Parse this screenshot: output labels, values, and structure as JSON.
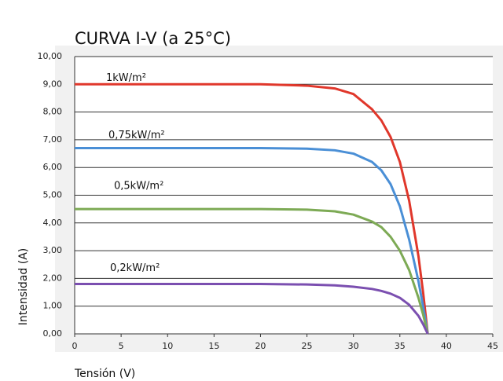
{
  "chart_data": {
    "type": "line",
    "title": "CURVA I-V (a 25°C)",
    "x_label": "Tensión (V)",
    "y_label": "Intensidad (A)",
    "x": [
      0,
      5,
      10,
      15,
      20,
      25,
      28,
      30,
      32,
      33,
      34,
      35,
      36,
      37,
      37.5,
      38
    ],
    "series": [
      {
        "name": "1kW/m²",
        "color": "#e0372b",
        "values": [
          9,
          9,
          9,
          9,
          9,
          8.95,
          8.85,
          8.65,
          8.1,
          7.7,
          7.1,
          6.2,
          4.8,
          2.8,
          1.5,
          0
        ]
      },
      {
        "name": "0,75kW/m²",
        "color": "#4a8fd6",
        "values": [
          6.7,
          6.7,
          6.7,
          6.7,
          6.7,
          6.68,
          6.62,
          6.5,
          6.2,
          5.9,
          5.4,
          4.6,
          3.4,
          1.9,
          1.0,
          0
        ]
      },
      {
        "name": "0,5kW/m²",
        "color": "#7daa55",
        "values": [
          4.5,
          4.5,
          4.5,
          4.5,
          4.5,
          4.48,
          4.42,
          4.3,
          4.05,
          3.85,
          3.5,
          3.0,
          2.3,
          1.3,
          0.7,
          0
        ]
      },
      {
        "name": "0,2kW/m²",
        "color": "#7b4fb0",
        "values": [
          1.8,
          1.8,
          1.8,
          1.8,
          1.8,
          1.78,
          1.75,
          1.7,
          1.62,
          1.55,
          1.45,
          1.3,
          1.05,
          0.65,
          0.35,
          0
        ]
      }
    ],
    "xlim": [
      0,
      45
    ],
    "xticks": [
      0,
      5,
      10,
      15,
      20,
      25,
      30,
      35,
      40,
      45
    ],
    "ylim": [
      0,
      10
    ],
    "yticks": [
      {
        "value": 0,
        "label": "0,00"
      },
      {
        "value": 1,
        "label": "1,00"
      },
      {
        "value": 2,
        "label": "2,00"
      },
      {
        "value": 3,
        "label": "3,00"
      },
      {
        "value": 4,
        "label": "4,00"
      },
      {
        "value": 5,
        "label": "5,00"
      },
      {
        "value": 6,
        "label": "6,00"
      },
      {
        "value": 7,
        "label": "7,00"
      },
      {
        "value": 8,
        "label": "8,00"
      },
      {
        "value": 9,
        "label": "9,00"
      },
      {
        "value": 10,
        "label": "10,00"
      }
    ],
    "grid": true
  }
}
